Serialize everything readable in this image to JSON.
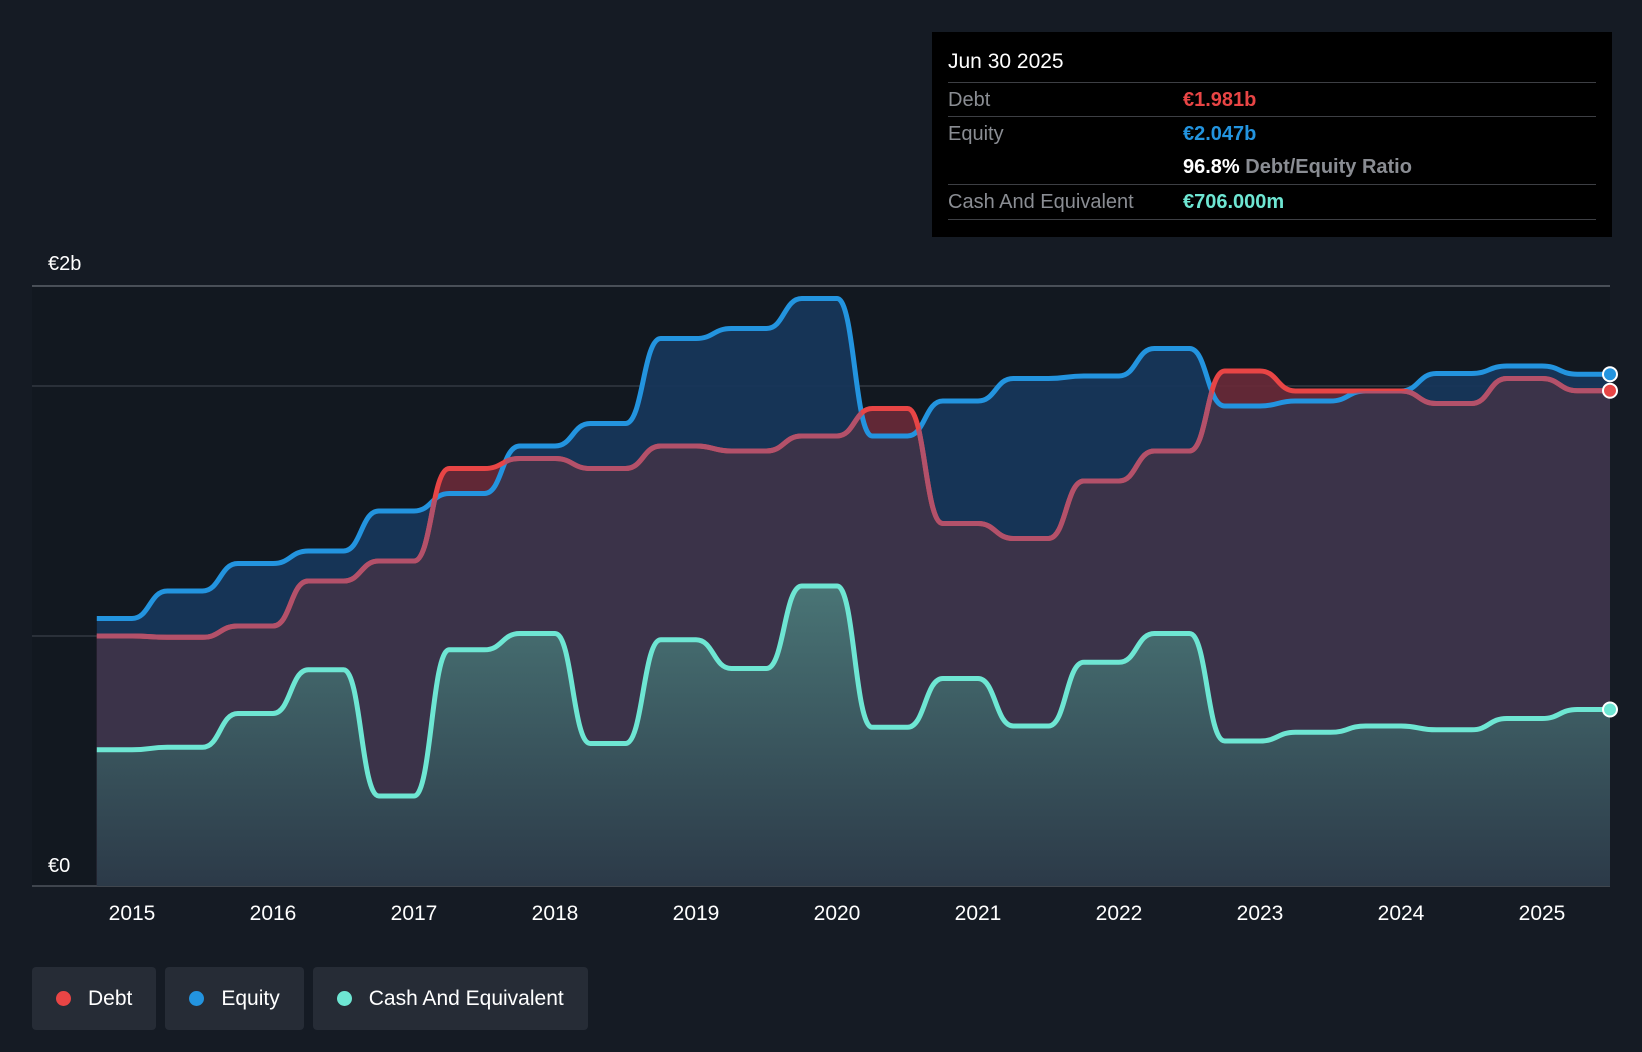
{
  "chart_data": {
    "type": "area",
    "ylim": [
      0,
      2.4
    ],
    "y_ticks": [
      {
        "value": 2.4,
        "label": "€2b"
      },
      {
        "value": 0,
        "label": "€0"
      }
    ],
    "x_ticks": [
      "2015",
      "2016",
      "2017",
      "2018",
      "2019",
      "2020",
      "2021",
      "2022",
      "2023",
      "2024",
      "2025"
    ],
    "x_range": [
      2014.7,
      2025.5
    ],
    "colors": {
      "debt": "#e84545",
      "equity": "#2394df",
      "cash": "#6ee6d3"
    },
    "series": [
      {
        "name": "Debt",
        "x": [
          2014.75,
          2015.0,
          2015.25,
          2015.5,
          2015.75,
          2016.0,
          2016.25,
          2016.5,
          2016.75,
          2017.0,
          2017.25,
          2017.5,
          2017.75,
          2018.0,
          2018.25,
          2018.5,
          2018.75,
          2019.0,
          2019.25,
          2019.5,
          2019.75,
          2020.0,
          2020.25,
          2020.5,
          2020.75,
          2021.0,
          2021.25,
          2021.5,
          2021.75,
          2022.0,
          2022.25,
          2022.5,
          2022.75,
          2023.0,
          2023.25,
          2023.5,
          2023.75,
          2024.0,
          2024.25,
          2024.5,
          2024.75,
          2025.0,
          2025.25,
          2025.5
        ],
        "values": [
          1.0,
          1.0,
          0.995,
          0.995,
          1.04,
          1.04,
          1.22,
          1.22,
          1.3,
          1.3,
          1.67,
          1.67,
          1.71,
          1.71,
          1.67,
          1.67,
          1.76,
          1.76,
          1.74,
          1.74,
          1.8,
          1.8,
          1.91,
          1.91,
          1.45,
          1.45,
          1.39,
          1.39,
          1.62,
          1.62,
          1.74,
          1.74,
          2.06,
          2.06,
          1.98,
          1.98,
          1.98,
          1.98,
          1.93,
          1.93,
          2.03,
          2.03,
          1.981,
          1.981
        ]
      },
      {
        "name": "Equity",
        "x": [
          2014.75,
          2015.0,
          2015.25,
          2015.5,
          2015.75,
          2016.0,
          2016.25,
          2016.5,
          2016.75,
          2017.0,
          2017.25,
          2017.5,
          2017.75,
          2018.0,
          2018.25,
          2018.5,
          2018.75,
          2019.0,
          2019.25,
          2019.5,
          2019.75,
          2020.0,
          2020.25,
          2020.5,
          2020.75,
          2021.0,
          2021.25,
          2021.5,
          2021.75,
          2022.0,
          2022.25,
          2022.5,
          2022.75,
          2023.0,
          2023.25,
          2023.5,
          2023.75,
          2024.0,
          2024.25,
          2024.5,
          2024.75,
          2025.0,
          2025.25,
          2025.5
        ],
        "values": [
          1.07,
          1.07,
          1.18,
          1.18,
          1.29,
          1.29,
          1.34,
          1.34,
          1.5,
          1.5,
          1.57,
          1.57,
          1.76,
          1.76,
          1.85,
          1.85,
          2.19,
          2.19,
          2.23,
          2.23,
          2.35,
          2.35,
          1.8,
          1.8,
          1.94,
          1.94,
          2.03,
          2.03,
          2.04,
          2.04,
          2.15,
          2.15,
          1.92,
          1.92,
          1.94,
          1.94,
          1.98,
          1.98,
          2.05,
          2.05,
          2.08,
          2.08,
          2.047,
          2.047
        ]
      },
      {
        "name": "Cash And Equivalent",
        "x": [
          2014.75,
          2015.0,
          2015.25,
          2015.5,
          2015.75,
          2016.0,
          2016.25,
          2016.5,
          2016.75,
          2017.0,
          2017.25,
          2017.5,
          2017.75,
          2018.0,
          2018.25,
          2018.5,
          2018.75,
          2019.0,
          2019.25,
          2019.5,
          2019.75,
          2020.0,
          2020.25,
          2020.5,
          2020.75,
          2021.0,
          2021.25,
          2021.5,
          2021.75,
          2022.0,
          2022.25,
          2022.5,
          2022.75,
          2023.0,
          2023.25,
          2023.5,
          2023.75,
          2024.0,
          2024.25,
          2024.5,
          2024.75,
          2025.0,
          2025.25,
          2025.5
        ],
        "values": [
          0.545,
          0.545,
          0.555,
          0.555,
          0.69,
          0.69,
          0.865,
          0.865,
          0.36,
          0.36,
          0.945,
          0.945,
          1.01,
          1.01,
          0.57,
          0.57,
          0.985,
          0.985,
          0.87,
          0.87,
          1.2,
          1.2,
          0.635,
          0.635,
          0.83,
          0.83,
          0.64,
          0.64,
          0.895,
          0.895,
          1.01,
          1.01,
          0.58,
          0.58,
          0.615,
          0.615,
          0.64,
          0.64,
          0.625,
          0.625,
          0.67,
          0.67,
          0.706,
          0.706
        ]
      }
    ]
  },
  "tooltip": {
    "date": "Jun 30 2025",
    "debt_label": "Debt",
    "debt_value": "€1.981b",
    "equity_label": "Equity",
    "equity_value": "€2.047b",
    "ratio_value": "96.8%",
    "ratio_label": "Debt/Equity Ratio",
    "cash_label": "Cash And Equivalent",
    "cash_value": "€706.000m"
  },
  "legend": {
    "debt": "Debt",
    "equity": "Equity",
    "cash": "Cash And Equivalent"
  }
}
